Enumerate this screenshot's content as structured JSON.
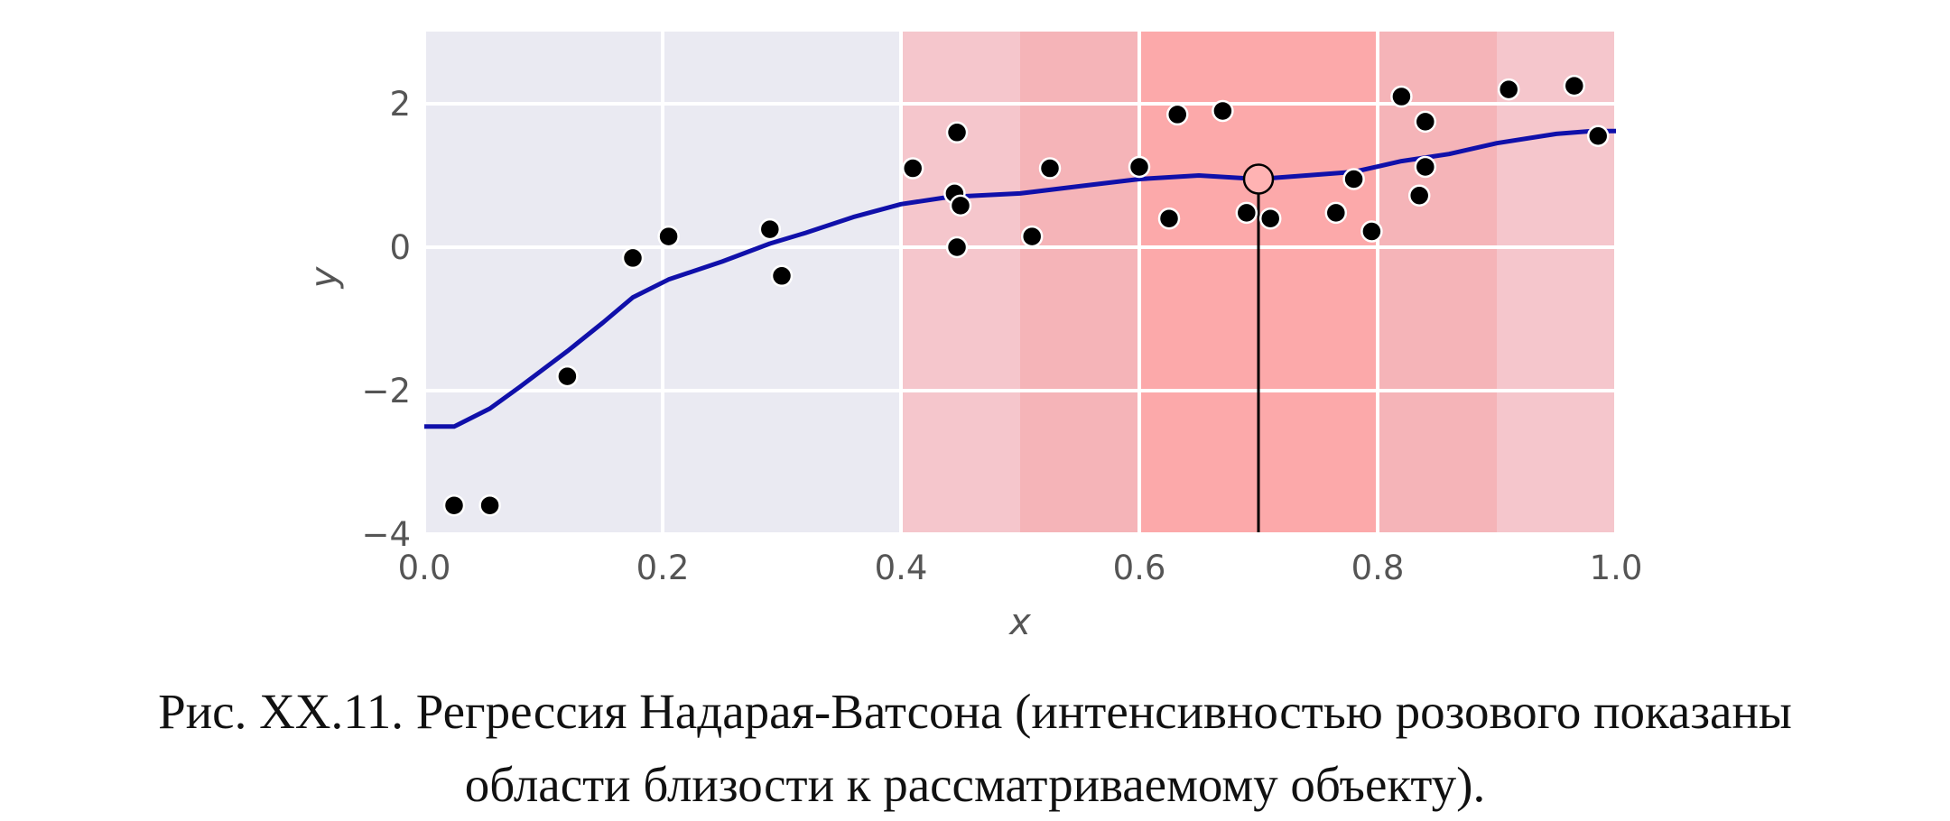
{
  "chart_data": {
    "type": "scatter",
    "xlabel": "x",
    "ylabel": "y",
    "xlim": [
      0.0,
      1.0
    ],
    "ylim": [
      -4,
      3
    ],
    "xticks": [
      "0.0",
      "0.2",
      "0.4",
      "0.6",
      "0.8",
      "1.0"
    ],
    "yticks": [
      "2",
      "0",
      "−2",
      "−4"
    ],
    "grid": true,
    "colors": {
      "background": "#eaeaf2",
      "grid": "#ffffff",
      "curve": "#1010aa",
      "points": "#000000",
      "query_point": "#ffb3b3",
      "band_light": "#f5c6cc",
      "band_mid": "#f5b4b8",
      "band_dark": "#fca9aa"
    },
    "points": [
      {
        "x": 0.025,
        "y": -3.6
      },
      {
        "x": 0.055,
        "y": -3.6
      },
      {
        "x": 0.12,
        "y": -1.8
      },
      {
        "x": 0.175,
        "y": -0.15
      },
      {
        "x": 0.205,
        "y": 0.15
      },
      {
        "x": 0.29,
        "y": 0.25
      },
      {
        "x": 0.3,
        "y": -0.4
      },
      {
        "x": 0.41,
        "y": 1.1
      },
      {
        "x": 0.445,
        "y": 0.75
      },
      {
        "x": 0.447,
        "y": 1.6
      },
      {
        "x": 0.45,
        "y": 0.58
      },
      {
        "x": 0.447,
        "y": 0.0
      },
      {
        "x": 0.51,
        "y": 0.15
      },
      {
        "x": 0.525,
        "y": 1.1
      },
      {
        "x": 0.6,
        "y": 1.12
      },
      {
        "x": 0.625,
        "y": 0.4
      },
      {
        "x": 0.632,
        "y": 1.85
      },
      {
        "x": 0.67,
        "y": 1.9
      },
      {
        "x": 0.69,
        "y": 0.48
      },
      {
        "x": 0.71,
        "y": 0.4
      },
      {
        "x": 0.765,
        "y": 0.48
      },
      {
        "x": 0.78,
        "y": 0.95
      },
      {
        "x": 0.795,
        "y": 0.22
      },
      {
        "x": 0.82,
        "y": 2.1
      },
      {
        "x": 0.835,
        "y": 0.72
      },
      {
        "x": 0.84,
        "y": 1.12
      },
      {
        "x": 0.84,
        "y": 1.75
      },
      {
        "x": 0.91,
        "y": 2.2
      },
      {
        "x": 0.965,
        "y": 2.25
      },
      {
        "x": 0.985,
        "y": 1.55
      }
    ],
    "curve": [
      {
        "x": 0.0,
        "y": -2.5
      },
      {
        "x": 0.025,
        "y": -2.5
      },
      {
        "x": 0.055,
        "y": -2.25
      },
      {
        "x": 0.08,
        "y": -1.95
      },
      {
        "x": 0.12,
        "y": -1.45
      },
      {
        "x": 0.15,
        "y": -1.05
      },
      {
        "x": 0.175,
        "y": -0.7
      },
      {
        "x": 0.205,
        "y": -0.45
      },
      {
        "x": 0.25,
        "y": -0.2
      },
      {
        "x": 0.29,
        "y": 0.05
      },
      {
        "x": 0.32,
        "y": 0.2
      },
      {
        "x": 0.36,
        "y": 0.42
      },
      {
        "x": 0.4,
        "y": 0.6
      },
      {
        "x": 0.44,
        "y": 0.7
      },
      {
        "x": 0.5,
        "y": 0.75
      },
      {
        "x": 0.55,
        "y": 0.85
      },
      {
        "x": 0.6,
        "y": 0.95
      },
      {
        "x": 0.65,
        "y": 1.0
      },
      {
        "x": 0.7,
        "y": 0.95
      },
      {
        "x": 0.74,
        "y": 1.0
      },
      {
        "x": 0.78,
        "y": 1.05
      },
      {
        "x": 0.82,
        "y": 1.2
      },
      {
        "x": 0.86,
        "y": 1.3
      },
      {
        "x": 0.9,
        "y": 1.45
      },
      {
        "x": 0.95,
        "y": 1.58
      },
      {
        "x": 0.98,
        "y": 1.62
      },
      {
        "x": 1.0,
        "y": 1.62
      }
    ],
    "query_point": {
      "x": 0.7,
      "y": 0.95
    },
    "proximity_bands": [
      {
        "x0": 0.4,
        "x1": 1.0,
        "level": "light"
      },
      {
        "x0": 0.5,
        "x1": 0.9,
        "level": "mid"
      },
      {
        "x0": 0.6,
        "x1": 0.8,
        "level": "dark"
      }
    ]
  },
  "caption": {
    "line1": "Рис. XX.11. Регрессия Надарая-Ватсона (интенсивностью розового показаны",
    "line2": "области близости к рассматриваемому объекту)."
  }
}
